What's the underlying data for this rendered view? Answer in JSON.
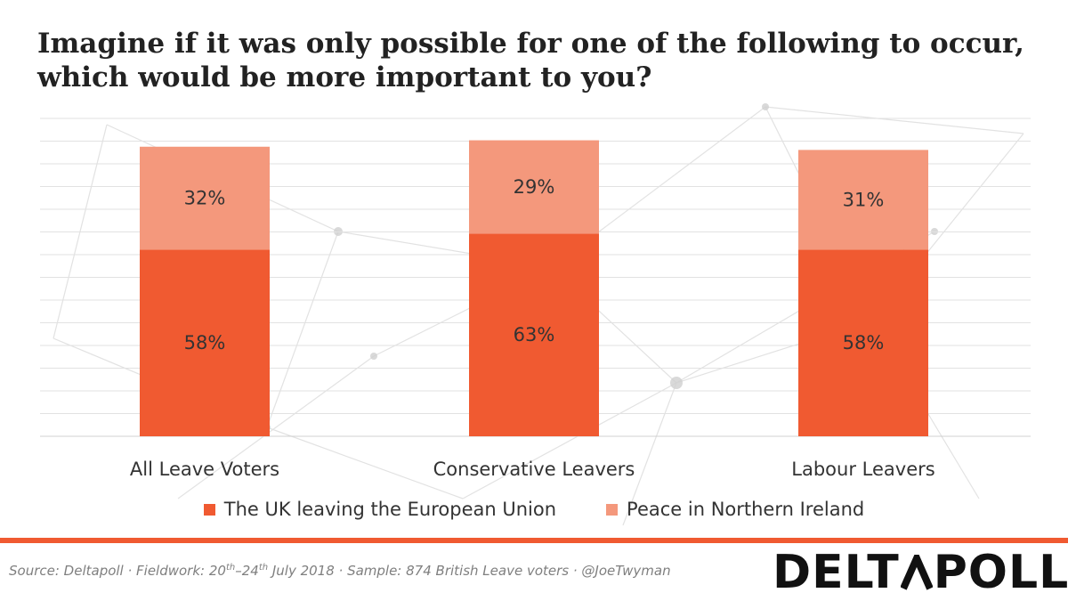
{
  "title_lines": [
    "Imagine if it was only possible for one of the following to occur,",
    "which would be more important to you?"
  ],
  "chart_data": {
    "type": "bar",
    "stacked": true,
    "title": "Imagine if it was only possible for one of the following to occur, which would be more important to you?",
    "categories": [
      "All Leave Voters",
      "Conservative Leavers",
      "Labour Leavers"
    ],
    "series": [
      {
        "name": "The UK leaving the European Union",
        "values": [
          58,
          63,
          58
        ],
        "labels": [
          "58%",
          "63%",
          "58%"
        ],
        "color": "#f05a31"
      },
      {
        "name": "Peace in Northern Ireland",
        "values": [
          32,
          29,
          31
        ],
        "labels": [
          "32%",
          "29%",
          "31%"
        ],
        "color": "#f4987c"
      }
    ],
    "ylim": [
      0,
      100
    ],
    "grid": true,
    "legend": "bottom"
  },
  "footer": {
    "source_a": "Source: Deltapoll · Fieldwork: 20",
    "sup_1": "th",
    "source_b": "–24",
    "sup_2": "th",
    "source_c": " July 2018 · Sample: 874 British Leave voters · @JoeTwyman",
    "logo_left": "DELT",
    "logo_right": "POLL",
    "logo_full": "DELTAPOLL",
    "rule_color": "#f05a31"
  }
}
